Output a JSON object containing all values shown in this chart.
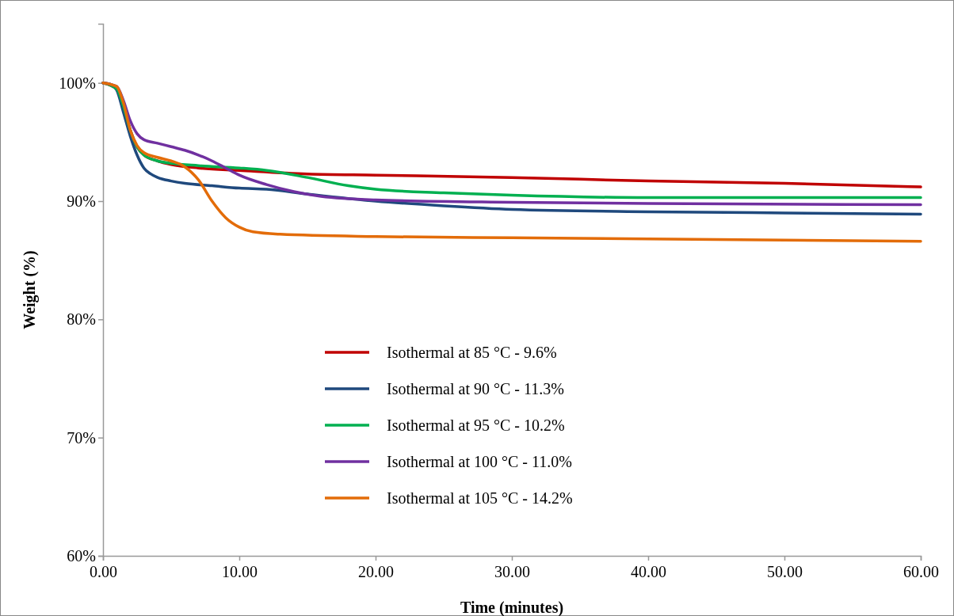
{
  "chart_data": {
    "type": "line",
    "xlabel": "Time (minutes)",
    "ylabel": "Weight (%)",
    "xlim": [
      0,
      60
    ],
    "ylim": [
      60,
      105
    ],
    "xticks": [
      {
        "value": 0,
        "label": "0.00"
      },
      {
        "value": 10,
        "label": "10.00"
      },
      {
        "value": 20,
        "label": "20.00"
      },
      {
        "value": 30,
        "label": "30.00"
      },
      {
        "value": 40,
        "label": "40.00"
      },
      {
        "value": 50,
        "label": "50.00"
      },
      {
        "value": 60,
        "label": "60.00"
      }
    ],
    "yticks": [
      {
        "value": 60,
        "label": "60%"
      },
      {
        "value": 70,
        "label": "70%"
      },
      {
        "value": 80,
        "label": "80%"
      },
      {
        "value": 90,
        "label": "90%"
      },
      {
        "value": 100,
        "label": "100%"
      }
    ],
    "grid": false,
    "legend": "bottom",
    "marker": "none",
    "line_style": "solid",
    "series": [
      {
        "name": "Isothermal at 85 °C - 9.6%",
        "color": "#c00000",
        "x": [
          0,
          1,
          1.5,
          2,
          2.5,
          3,
          4,
          5,
          7,
          10,
          15,
          20,
          30,
          40,
          50,
          60
        ],
        "values": [
          100,
          99.5,
          98,
          96,
          94.6,
          93.9,
          93.4,
          93.1,
          92.8,
          92.6,
          92.3,
          92.2,
          92,
          91.7,
          91.5,
          91.2
        ]
      },
      {
        "name": "Isothermal at 90 °C - 11.3%",
        "color": "#1f497d",
        "x": [
          0,
          0.5,
          1,
          1.5,
          2,
          2.5,
          3,
          3.5,
          4,
          5,
          6,
          8,
          10,
          12,
          15,
          20,
          25,
          30,
          40,
          50,
          60
        ],
        "values": [
          100,
          99.9,
          99.4,
          97.5,
          95.5,
          93.9,
          92.8,
          92.3,
          92,
          91.7,
          91.5,
          91.3,
          91.1,
          91,
          90.6,
          90,
          89.6,
          89.3,
          89.1,
          89,
          88.9
        ]
      },
      {
        "name": "Isothermal at 95 °C - 10.2%",
        "color": "#00b050",
        "x": [
          0,
          1,
          1.5,
          2,
          2.5,
          3,
          4,
          5,
          7,
          10,
          12,
          15,
          18,
          20,
          25,
          30,
          40,
          50,
          60
        ],
        "values": [
          100,
          99.5,
          98,
          96,
          94.6,
          93.9,
          93.4,
          93.2,
          93,
          92.8,
          92.6,
          92,
          91.3,
          91,
          90.7,
          90.5,
          90.3,
          90.3,
          90.3
        ]
      },
      {
        "name": "Isothermal at 100 °C - 11.0%",
        "color": "#7030a0",
        "x": [
          0,
          1,
          1.5,
          2,
          2.5,
          3,
          4,
          5,
          6,
          7,
          8,
          9,
          10,
          12,
          14,
          16,
          20,
          30,
          40,
          60
        ],
        "values": [
          100,
          99.7,
          98.5,
          96.8,
          95.7,
          95.2,
          94.9,
          94.6,
          94.3,
          93.9,
          93.4,
          92.8,
          92.2,
          91.4,
          90.8,
          90.4,
          90.1,
          89.9,
          89.8,
          89.7
        ]
      },
      {
        "name": "Isothermal at 105 °C - 14.2%",
        "color": "#e36c09",
        "x": [
          0,
          1,
          1.5,
          2,
          2.5,
          3,
          4,
          5,
          6,
          7,
          8,
          9,
          10,
          11,
          13,
          20,
          30,
          40,
          50,
          60
        ],
        "values": [
          100,
          99.7,
          98.3,
          96,
          94.7,
          94.1,
          93.7,
          93.4,
          92.9,
          91.8,
          90,
          88.6,
          87.8,
          87.4,
          87.2,
          87,
          86.9,
          86.8,
          86.7,
          86.6
        ]
      }
    ]
  }
}
